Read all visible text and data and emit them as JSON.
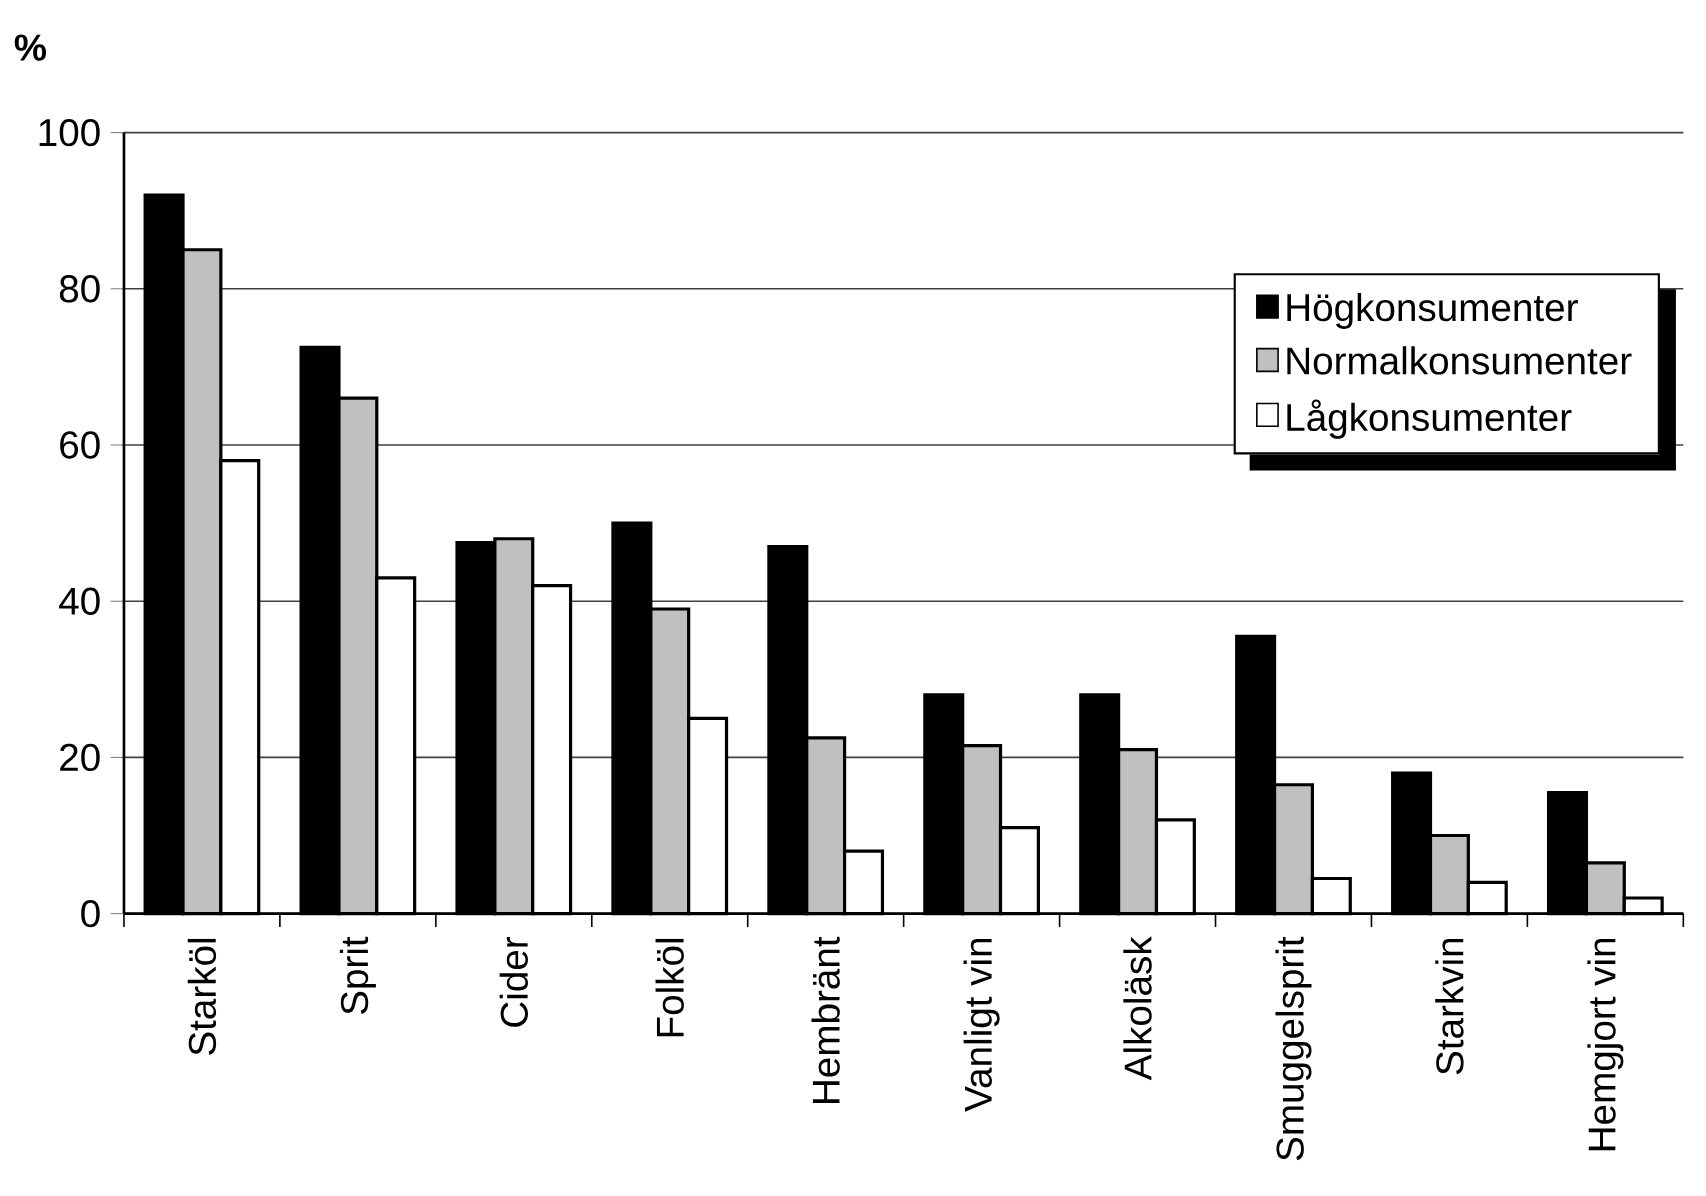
{
  "chart_data": {
    "type": "bar",
    "ylabel": "%",
    "categories": [
      "Starköl",
      "Sprit",
      "Cider",
      "Folköl",
      "Hembränt",
      "Vanligt vin",
      "Alkoläsk",
      "Smuggelsprit",
      "Starkvin",
      "Hemgjort vin"
    ],
    "series": [
      {
        "name": "Högkonsumenter",
        "color": "#000000",
        "values": [
          92,
          72.5,
          47.5,
          50,
          47,
          28,
          28,
          35.5,
          18,
          15.5
        ]
      },
      {
        "name": "Normalkonsumenter",
        "color": "#c0c0c0",
        "values": [
          85,
          66,
          48,
          39,
          22.5,
          21.5,
          21,
          16.5,
          10,
          6.5
        ]
      },
      {
        "name": "Lågkonsumenter",
        "color": "#ffffff",
        "values": [
          58,
          43,
          42,
          25,
          8,
          11,
          12,
          4.5,
          4,
          2
        ]
      }
    ],
    "ylim": [
      0,
      100
    ],
    "yticks": [
      0,
      20,
      40,
      60,
      80,
      100
    ],
    "grid": "y",
    "legend": "top right"
  }
}
